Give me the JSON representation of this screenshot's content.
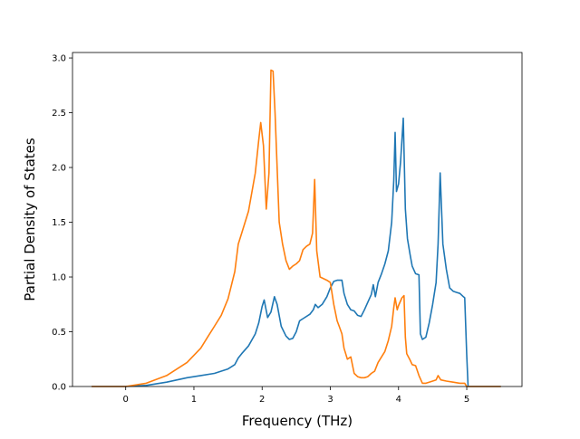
{
  "chart_data": {
    "type": "line",
    "title": "",
    "xlabel": "Frequency (THz)",
    "ylabel": "Partial Density of States",
    "xlim": [
      -0.78,
      5.81
    ],
    "ylim": [
      0.0,
      3.05
    ],
    "xticks": [
      0,
      1,
      2,
      3,
      4,
      5
    ],
    "yticks": [
      0.0,
      0.5,
      1.0,
      1.5,
      2.0,
      2.5,
      3.0
    ],
    "xtick_labels": [
      "0",
      "1",
      "2",
      "3",
      "4",
      "5"
    ],
    "ytick_labels": [
      "0.0",
      "0.5",
      "1.0",
      "1.5",
      "2.0",
      "2.5",
      "3.0"
    ],
    "grid": false,
    "legend": "none",
    "series": [
      {
        "color": "#1f77b4",
        "x": [
          -0.5,
          0.0,
          0.3,
          0.6,
          0.9,
          1.1,
          1.3,
          1.5,
          1.6,
          1.65,
          1.7,
          1.8,
          1.9,
          1.95,
          2.0,
          2.03,
          2.08,
          2.13,
          2.18,
          2.22,
          2.28,
          2.35,
          2.4,
          2.45,
          2.5,
          2.55,
          2.6,
          2.7,
          2.75,
          2.78,
          2.82,
          2.88,
          2.95,
          3.0,
          3.05,
          3.1,
          3.13,
          3.17,
          3.2,
          3.25,
          3.3,
          3.35,
          3.4,
          3.45,
          3.5,
          3.55,
          3.6,
          3.63,
          3.66,
          3.7,
          3.75,
          3.8,
          3.85,
          3.9,
          3.93,
          3.95,
          3.97,
          4.0,
          4.03,
          4.07,
          4.1,
          4.13,
          4.17,
          4.2,
          4.25,
          4.3,
          4.32,
          4.35,
          4.4,
          4.45,
          4.5,
          4.55,
          4.58,
          4.61,
          4.65,
          4.7,
          4.75,
          4.8,
          4.85,
          4.9,
          4.95,
          4.97,
          5.0,
          5.02,
          5.2,
          5.5
        ],
        "y": [
          0.0,
          0.0,
          0.01,
          0.04,
          0.08,
          0.1,
          0.12,
          0.16,
          0.2,
          0.26,
          0.3,
          0.37,
          0.48,
          0.58,
          0.73,
          0.79,
          0.63,
          0.68,
          0.82,
          0.75,
          0.55,
          0.46,
          0.43,
          0.44,
          0.5,
          0.6,
          0.62,
          0.66,
          0.7,
          0.75,
          0.72,
          0.75,
          0.82,
          0.9,
          0.96,
          0.97,
          0.97,
          0.97,
          0.85,
          0.75,
          0.7,
          0.69,
          0.65,
          0.64,
          0.7,
          0.77,
          0.84,
          0.93,
          0.82,
          0.95,
          1.03,
          1.12,
          1.24,
          1.5,
          1.88,
          2.32,
          1.78,
          1.85,
          2.05,
          2.45,
          1.62,
          1.35,
          1.2,
          1.1,
          1.03,
          1.02,
          0.48,
          0.43,
          0.45,
          0.58,
          0.75,
          0.95,
          1.3,
          1.95,
          1.3,
          1.07,
          0.9,
          0.87,
          0.86,
          0.85,
          0.82,
          0.81,
          0.29,
          0.0,
          0.0,
          0.0
        ],
        "name": ""
      },
      {
        "color": "#ff7f0e",
        "x": [
          -0.5,
          0.0,
          0.3,
          0.6,
          0.9,
          1.1,
          1.2,
          1.3,
          1.4,
          1.5,
          1.6,
          1.65,
          1.7,
          1.8,
          1.9,
          1.95,
          1.98,
          2.02,
          2.06,
          2.1,
          2.13,
          2.16,
          2.19,
          2.25,
          2.3,
          2.35,
          2.4,
          2.45,
          2.5,
          2.55,
          2.6,
          2.65,
          2.7,
          2.74,
          2.77,
          2.8,
          2.85,
          2.95,
          3.0,
          3.05,
          3.1,
          3.13,
          3.17,
          3.2,
          3.25,
          3.3,
          3.35,
          3.4,
          3.45,
          3.5,
          3.55,
          3.6,
          3.65,
          3.7,
          3.8,
          3.85,
          3.9,
          3.93,
          3.95,
          3.98,
          4.0,
          4.05,
          4.08,
          4.1,
          4.12,
          4.17,
          4.2,
          4.25,
          4.3,
          4.35,
          4.4,
          4.45,
          4.5,
          4.55,
          4.58,
          4.62,
          4.7,
          4.8,
          4.9,
          4.97,
          5.0,
          5.5
        ],
        "y": [
          0.0,
          0.0,
          0.03,
          0.1,
          0.22,
          0.35,
          0.45,
          0.55,
          0.65,
          0.8,
          1.05,
          1.3,
          1.4,
          1.6,
          1.95,
          2.25,
          2.41,
          2.2,
          1.62,
          1.95,
          2.89,
          2.88,
          2.5,
          1.5,
          1.3,
          1.15,
          1.07,
          1.1,
          1.12,
          1.15,
          1.25,
          1.28,
          1.3,
          1.4,
          1.89,
          1.24,
          1.0,
          0.97,
          0.95,
          0.75,
          0.6,
          0.55,
          0.48,
          0.35,
          0.25,
          0.27,
          0.12,
          0.09,
          0.08,
          0.08,
          0.09,
          0.12,
          0.14,
          0.22,
          0.32,
          0.42,
          0.55,
          0.72,
          0.81,
          0.7,
          0.74,
          0.81,
          0.83,
          0.45,
          0.3,
          0.24,
          0.2,
          0.19,
          0.1,
          0.03,
          0.03,
          0.04,
          0.05,
          0.06,
          0.1,
          0.06,
          0.05,
          0.04,
          0.03,
          0.03,
          0.0,
          0.0
        ],
        "name": ""
      }
    ]
  }
}
